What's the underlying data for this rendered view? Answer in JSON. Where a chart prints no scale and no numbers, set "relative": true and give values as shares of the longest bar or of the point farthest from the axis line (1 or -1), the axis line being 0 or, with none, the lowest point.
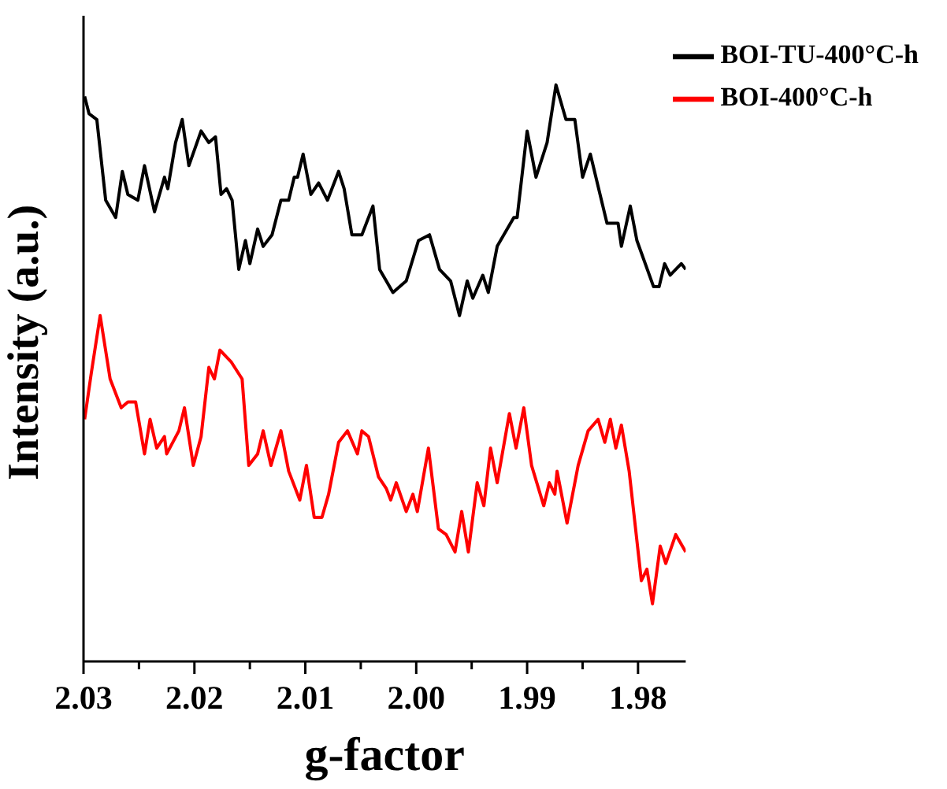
{
  "chart_data": {
    "type": "line",
    "xlabel": "g-factor",
    "ylabel": "Intensity (a.u.)",
    "relative": true,
    "legend": "top right",
    "marker": "none",
    "line_style": "solid",
    "grid": false,
    "xlim": [
      2.03,
      1.9757
    ],
    "xticks": [
      2.03,
      {
        "value": 2.025,
        "label": null
      },
      2.02,
      {
        "value": 2.015,
        "label": null
      },
      2.01,
      {
        "value": 2.005,
        "label": null
      },
      {
        "value": 2.0,
        "label": "2.00"
      },
      {
        "value": 1.995,
        "label": null
      },
      1.99,
      {
        "value": 1.985,
        "label": null
      },
      1.98
    ],
    "series": [
      {
        "name": "BOI-TU-400°C-h",
        "color": "#000000",
        "x": [
          2.0299,
          2.0295,
          2.0288,
          2.028,
          2.0271,
          2.0265,
          2.026,
          2.0251,
          2.0245,
          2.0236,
          2.0227,
          2.0224,
          2.0217,
          2.0211,
          2.0205,
          2.0194,
          2.0187,
          2.0181,
          2.0176,
          2.0171,
          2.0166,
          2.016,
          2.0154,
          2.015,
          2.0143,
          2.0138,
          2.013,
          2.0122,
          2.0115,
          2.011,
          2.0107,
          2.0102,
          2.0095,
          2.0088,
          2.008,
          2.007,
          2.0065,
          2.0058,
          2.0049,
          2.0039,
          2.0033,
          2.0027,
          2.0021,
          2.0009,
          1.9998,
          1.9988,
          1.9979,
          1.9969,
          1.9961,
          1.9954,
          1.9949,
          1.994,
          1.9935,
          1.9927,
          1.9912,
          1.9909,
          1.99,
          1.9892,
          1.9882,
          1.9874,
          1.9865,
          1.9857,
          1.985,
          1.9843,
          1.9828,
          1.9818,
          1.9815,
          1.9807,
          1.9801,
          1.9786,
          1.9781,
          1.9776,
          1.9771,
          1.9761,
          1.9757
        ],
        "values": [
          0.98,
          0.95,
          0.94,
          0.8,
          0.77,
          0.85,
          0.81,
          0.8,
          0.86,
          0.78,
          0.84,
          0.82,
          0.9,
          0.94,
          0.86,
          0.92,
          0.9,
          0.91,
          0.81,
          0.82,
          0.8,
          0.68,
          0.73,
          0.69,
          0.75,
          0.72,
          0.74,
          0.8,
          0.8,
          0.84,
          0.84,
          0.88,
          0.81,
          0.83,
          0.8,
          0.85,
          0.82,
          0.74,
          0.74,
          0.79,
          0.68,
          0.66,
          0.64,
          0.66,
          0.73,
          0.74,
          0.68,
          0.66,
          0.6,
          0.66,
          0.63,
          0.67,
          0.64,
          0.72,
          0.77,
          0.77,
          0.92,
          0.84,
          0.9,
          1.0,
          0.94,
          0.94,
          0.84,
          0.88,
          0.76,
          0.76,
          0.72,
          0.79,
          0.73,
          0.65,
          0.65,
          0.69,
          0.67,
          0.69,
          0.68
        ]
      },
      {
        "name": "BOI-400°C-h",
        "color": "#ff0000",
        "x": [
          2.0299,
          2.0293,
          2.0285,
          2.0276,
          2.0266,
          2.026,
          2.0253,
          2.0245,
          2.024,
          2.0234,
          2.0227,
          2.0225,
          2.0214,
          2.0209,
          2.0201,
          2.0194,
          2.0187,
          2.0182,
          2.0177,
          2.0167,
          2.0157,
          2.0151,
          2.0143,
          2.0138,
          2.0131,
          2.0122,
          2.0115,
          2.0105,
          2.0099,
          2.0092,
          2.0085,
          2.0079,
          2.007,
          2.0062,
          2.0053,
          2.0049,
          2.0043,
          2.0034,
          2.0027,
          2.0023,
          2.0018,
          2.0009,
          2.0003,
          1.9999,
          1.9989,
          1.998,
          1.9973,
          1.9965,
          1.9959,
          1.9953,
          1.9945,
          1.9939,
          1.9933,
          1.9927,
          1.9916,
          1.991,
          1.9903,
          1.9896,
          1.9885,
          1.988,
          1.9875,
          1.9873,
          1.9864,
          1.9854,
          1.9845,
          1.9836,
          1.983,
          1.9825,
          1.982,
          1.9815,
          1.9808,
          1.9797,
          1.9792,
          1.9787,
          1.978,
          1.9775,
          1.9766,
          1.9757
        ],
        "values": [
          0.42,
          0.5,
          0.6,
          0.49,
          0.44,
          0.45,
          0.45,
          0.36,
          0.42,
          0.37,
          0.39,
          0.36,
          0.4,
          0.44,
          0.34,
          0.39,
          0.51,
          0.49,
          0.54,
          0.52,
          0.49,
          0.34,
          0.36,
          0.4,
          0.34,
          0.4,
          0.33,
          0.28,
          0.34,
          0.25,
          0.25,
          0.29,
          0.38,
          0.4,
          0.36,
          0.4,
          0.39,
          0.32,
          0.3,
          0.28,
          0.31,
          0.26,
          0.29,
          0.26,
          0.37,
          0.23,
          0.22,
          0.19,
          0.26,
          0.19,
          0.31,
          0.27,
          0.37,
          0.31,
          0.43,
          0.37,
          0.44,
          0.34,
          0.27,
          0.31,
          0.29,
          0.33,
          0.24,
          0.34,
          0.4,
          0.42,
          0.38,
          0.42,
          0.37,
          0.41,
          0.33,
          0.14,
          0.16,
          0.1,
          0.2,
          0.17,
          0.22,
          0.19
        ]
      }
    ]
  }
}
